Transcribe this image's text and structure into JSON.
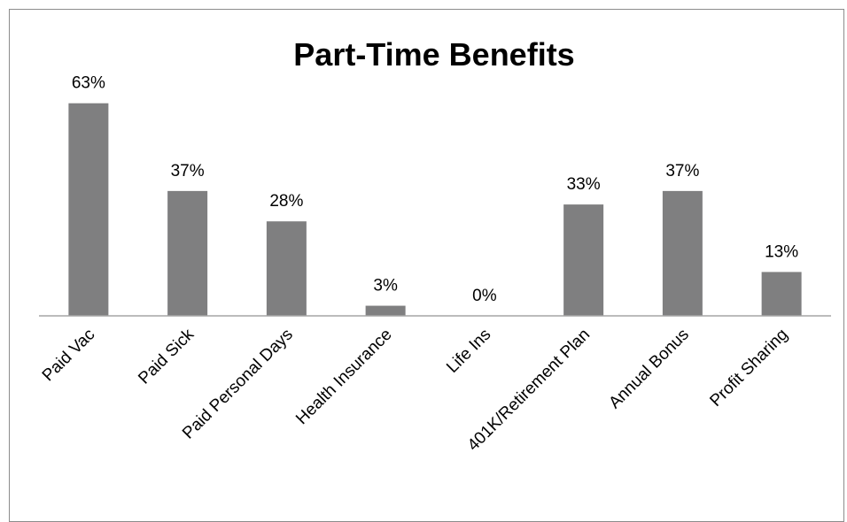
{
  "chart_data": {
    "type": "bar",
    "title": "Part-Time Benefits",
    "xlabel": "",
    "ylabel": "",
    "categories": [
      "Paid Vac",
      "Paid Sick",
      "Paid Personal Days",
      "Health Insurance",
      "Life Ins",
      "401K/Retirement Plan",
      "Annual Bonus",
      "Profit Sharing"
    ],
    "values": [
      63,
      37,
      28,
      3,
      0,
      33,
      37,
      13
    ],
    "data_labels": [
      "63%",
      "37%",
      "28%",
      "3%",
      "0%",
      "33%",
      "37%",
      "13%"
    ],
    "ylim": [
      0,
      70
    ],
    "grid": false,
    "legend": "none",
    "bar_color": "#7f7f80",
    "axis_color": "#a6a6a6",
    "border_color": "#8c8c8c"
  }
}
